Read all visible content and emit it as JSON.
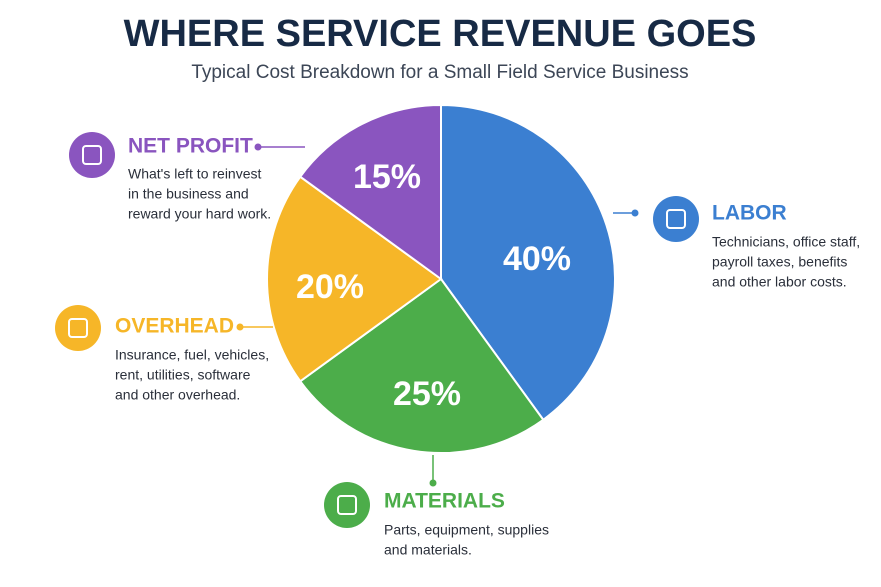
{
  "chart_data": {
    "type": "pie",
    "title": "WHERE SERVICE REVENUE GOES",
    "subtitle": "Typical Cost Breakdown for a Small Field Service Business",
    "categories": [
      "LABOR",
      "MATERIALS",
      "OVERHEAD",
      "NET PROFIT"
    ],
    "values": [
      40,
      25,
      20,
      15
    ],
    "value_labels": [
      "40%",
      "25%",
      "20%",
      "15%"
    ],
    "colors": [
      "#3b7fd1",
      "#4cad4a",
      "#f6b628",
      "#8a55bf"
    ],
    "descriptions": [
      [
        "Technicians, office staff,",
        "payroll taxes, benefits",
        "and other labor costs."
      ],
      [
        "Parts, equipment, supplies",
        "and materials."
      ],
      [
        "Insurance, fuel, vehicles,",
        "rent, utilities, software",
        "and other overhead."
      ],
      [
        "What's left to reinvest",
        "in the business and",
        "reward your hard work."
      ]
    ]
  }
}
